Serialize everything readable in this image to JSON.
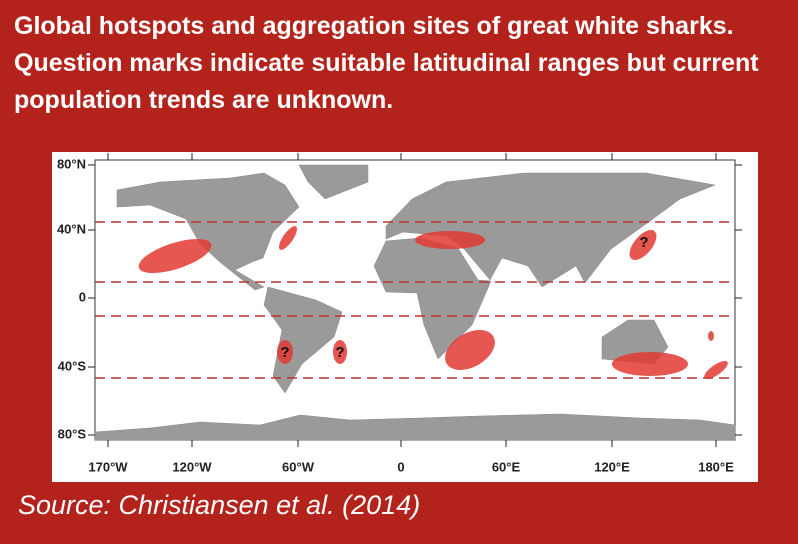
{
  "title": "Global hotspots and aggregation sites of great white sharks. Question marks indicate suitable latitudinal ranges but current population trends are unknown.",
  "map": {
    "lat_labels": [
      "80°N",
      "40°N",
      "0",
      "40°S",
      "80°S"
    ],
    "lon_labels": [
      "170°W",
      "120°W",
      "60°W",
      "0",
      "60°E",
      "120°E",
      "180°E"
    ],
    "question_marks": [
      "?",
      "?",
      "?"
    ]
  },
  "source": "Source: Christiansen et al. (2014)"
}
